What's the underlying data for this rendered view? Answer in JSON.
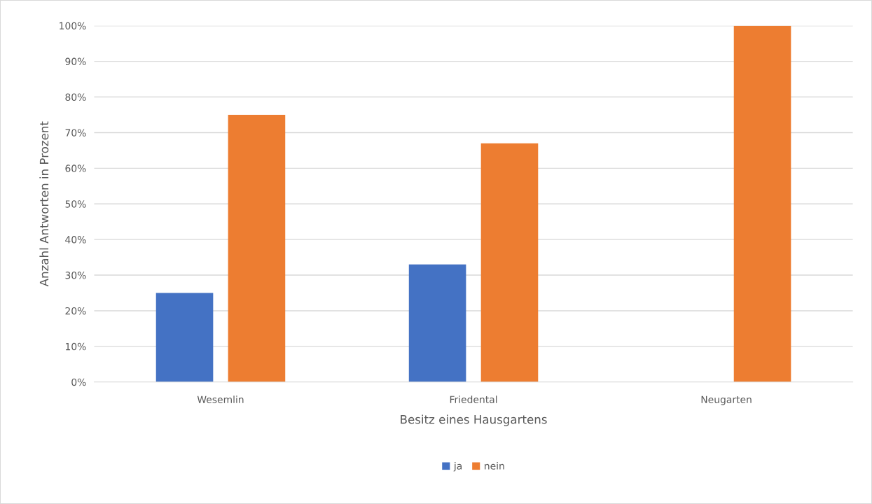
{
  "chart_data": {
    "type": "bar",
    "xlabel": "Besitz eines Hausgartens",
    "ylabel": "Anzahl Antworten in Prozent",
    "categories": [
      "Wesemlin",
      "Friedental",
      "Neugarten"
    ],
    "series": [
      {
        "name": "ja",
        "color": "#4472c4",
        "values": [
          25,
          33,
          0
        ]
      },
      {
        "name": "nein",
        "color": "#ed7d31",
        "values": [
          75,
          67,
          100
        ]
      }
    ],
    "ylim": [
      0,
      100
    ],
    "yticks": [
      {
        "value": 0,
        "label": "0%"
      },
      {
        "value": 10,
        "label": "10%"
      },
      {
        "value": 20,
        "label": "20%"
      },
      {
        "value": 30,
        "label": "30%"
      },
      {
        "value": 40,
        "label": "40%"
      },
      {
        "value": 50,
        "label": "50%"
      },
      {
        "value": 60,
        "label": "60%"
      },
      {
        "value": 70,
        "label": "70%"
      },
      {
        "value": 80,
        "label": "80%"
      },
      {
        "value": 90,
        "label": "90%"
      },
      {
        "value": 100,
        "label": "100%"
      }
    ],
    "grid": "y",
    "legend": "bottom"
  }
}
